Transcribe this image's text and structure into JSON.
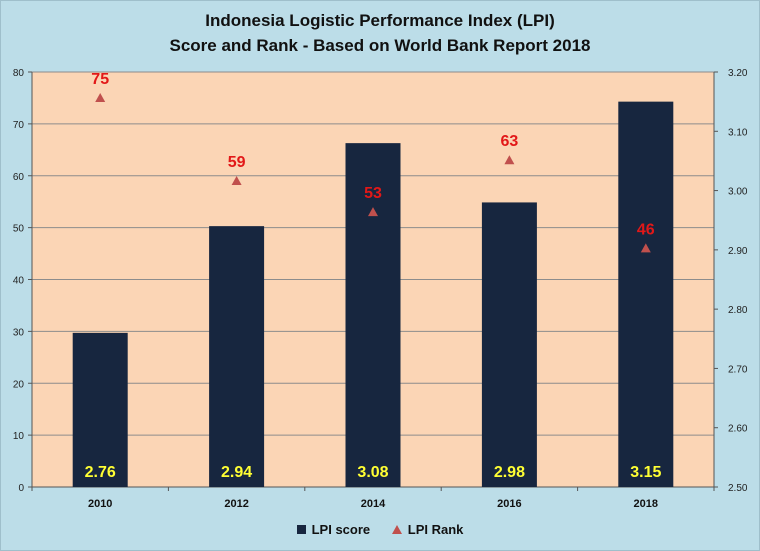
{
  "chart_data": {
    "type": "bar",
    "title": "Indonesia Logistic Performance Index (LPI)",
    "subtitle": "Score and Rank - Based on World Bank Report 2018",
    "categories": [
      "2010",
      "2012",
      "2014",
      "2016",
      "2018"
    ],
    "series": [
      {
        "name": "LPI score",
        "type": "bar",
        "axis": "right",
        "values": [
          2.76,
          2.94,
          3.08,
          2.98,
          3.15
        ],
        "labels": [
          "2.76",
          "2.94",
          "3.08",
          "2.98",
          "3.15"
        ],
        "color": "#17263f",
        "label_color": "#ffff33"
      },
      {
        "name": "LPI Rank",
        "type": "scatter",
        "axis": "left",
        "marker": "triangle",
        "values": [
          75,
          59,
          53,
          63,
          46
        ],
        "labels": [
          "75",
          "59",
          "53",
          "63",
          "46"
        ],
        "color": "#c0504d",
        "label_color": "#e21818"
      }
    ],
    "y_left": {
      "range": [
        0,
        80
      ],
      "ticks": [
        "0",
        "10",
        "20",
        "30",
        "40",
        "50",
        "60",
        "70",
        "80"
      ]
    },
    "y_right": {
      "range": [
        2.5,
        3.2
      ],
      "ticks": [
        "2.50",
        "2.60",
        "2.70",
        "2.80",
        "2.90",
        "3.00",
        "3.10",
        "3.20"
      ]
    },
    "grid": true,
    "legend_position": "bottom",
    "plot_background": "#fbd5b5",
    "outer_background": "#bcdde8"
  }
}
